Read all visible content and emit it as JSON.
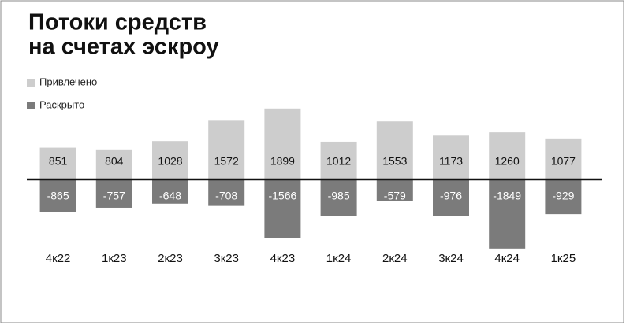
{
  "chart_data": {
    "type": "bar",
    "title": [
      "Потоки средств",
      "на счетах эскроу"
    ],
    "categories": [
      "4к22",
      "1к23",
      "2к23",
      "3к23",
      "4к23",
      "1к24",
      "2к24",
      "3к24",
      "4к24",
      "1к25"
    ],
    "series": [
      {
        "name": "Привлечено",
        "color": "#cdcdcd",
        "values": [
          851,
          804,
          1028,
          1572,
          1899,
          1012,
          1553,
          1173,
          1260,
          1077
        ]
      },
      {
        "name": "Раскрыто",
        "color": "#7b7b7b",
        "values": [
          -865,
          -757,
          -648,
          -708,
          -1566,
          -985,
          -579,
          -976,
          -1849,
          -929
        ]
      }
    ],
    "ylim": [
      -2000,
      2000
    ]
  }
}
